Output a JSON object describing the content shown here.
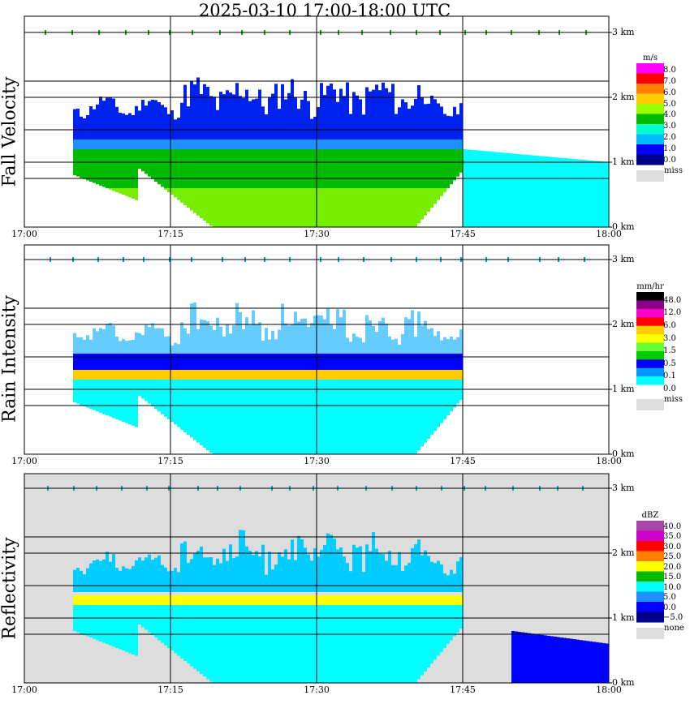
{
  "title": "2025-03-10   17:00-18:00 UTC",
  "chart_data": [
    {
      "type": "heatmap",
      "title": "Fall Velocity",
      "x_ticks": [
        "17:00",
        "17:15",
        "17:30",
        "17:45",
        "18:00"
      ],
      "y_ticks": [
        "0 km",
        "1 km",
        "2 km",
        "3 km"
      ],
      "legend": {
        "unit": "m/s",
        "labels": [
          "8.0",
          "7.0",
          "6.0",
          "5.0",
          "4.0",
          "3.0",
          "2.0",
          "1.0",
          "0.0"
        ],
        "colors": [
          "#ff00ff",
          "#ff0000",
          "#ff7f00",
          "#ffcc00",
          "#99ff00",
          "#00bb00",
          "#00ffcc",
          "#00bbff",
          "#0000ff",
          "#000088"
        ],
        "missing_label": "miss",
        "missing_color": "#dddddd"
      },
      "background": "#ffffff",
      "data": {
        "echo_top_km": 1.9,
        "melting_layer_km": 1.35,
        "rain_start": "17:05",
        "rain_end": "17:45",
        "echo_end": "17:59",
        "layers": [
          {
            "range_km": [
              1.35,
              2.0
            ],
            "value": 0.5,
            "color": "#0022ee"
          },
          {
            "range_km": [
              1.2,
              1.35
            ],
            "value": 1.5,
            "color": "#1e90ff"
          },
          {
            "range_km": [
              0.0,
              1.2
            ],
            "value": 3.5,
            "color": "#00bb00"
          },
          {
            "range_km": [
              0.0,
              0.6
            ],
            "value": 4.5,
            "color": "#77ee00"
          },
          {
            "range_km": [
              0.0,
              1.2
            ],
            "value": 2.5,
            "color": "#00ffff",
            "after": "17:45"
          }
        ]
      }
    },
    {
      "type": "heatmap",
      "title": "Rain Intensity",
      "x_ticks": [
        "17:00",
        "17:15",
        "17:30",
        "17:45",
        "18:00"
      ],
      "y_ticks": [
        "0 km",
        "1 km",
        "2 km",
        "3 km"
      ],
      "legend": {
        "unit": "mm/hr",
        "labels": [
          "48.0",
          "12.0",
          "6.0",
          "3.0",
          "1.5",
          "0.5",
          "0.1",
          "0.0"
        ],
        "colors": [
          "#000000",
          "#880088",
          "#ff00cc",
          "#ff0000",
          "#ffcc00",
          "#ffff00",
          "#66ff33",
          "#00cc00",
          "#0000ff",
          "#0099ff",
          "#00ffff",
          "#ffffff"
        ],
        "missing_label": "miss",
        "missing_color": "#dddddd"
      },
      "background": "#ffffff",
      "data": {
        "echo_top_km": 1.9,
        "bright_band_km": 1.2,
        "layers": [
          {
            "range_km": [
              1.4,
              2.0
            ],
            "value": 0.3,
            "color": "#66ccff"
          },
          {
            "range_km": [
              1.25,
              1.55
            ],
            "value": 0.5,
            "color": "#0000ff"
          },
          {
            "range_km": [
              1.15,
              1.3
            ],
            "value": 3.0,
            "color": "#ffcc00"
          },
          {
            "range_km": [
              0.0,
              1.15
            ],
            "value": 0.3,
            "color": "#1e90ff"
          },
          {
            "range_km": [
              0.0,
              1.15
            ],
            "value": 0.1,
            "color": "#00ffff"
          }
        ]
      }
    },
    {
      "type": "heatmap",
      "title": "Reflectivity",
      "x_ticks": [
        "17:00",
        "17:15",
        "17:30",
        "17:45",
        "18:00"
      ],
      "y_ticks": [
        "0 km",
        "1 km",
        "2 km",
        "3 km"
      ],
      "legend": {
        "unit": "dBZ",
        "labels": [
          "40.0",
          "35.0",
          "30.0",
          "25.0",
          "20.0",
          "15.0",
          "10.0",
          "5.0",
          "0.0",
          "−5.0"
        ],
        "colors": [
          "#aa44aa",
          "#cc00cc",
          "#ff0000",
          "#ff7f00",
          "#ffff00",
          "#00bb00",
          "#00ffff",
          "#1e90ff",
          "#0000ff",
          "#000088"
        ],
        "missing_label": "none",
        "missing_color": "#dddddd"
      },
      "background": "#dddddd",
      "data": {
        "echo_top_km": 1.9,
        "bright_band_km": 1.2,
        "layers": [
          {
            "range_km": [
              1.4,
              2.0
            ],
            "value": 7,
            "color": "#00ccff"
          },
          {
            "range_km": [
              1.2,
              1.35
            ],
            "value": 20,
            "color": "#ffff00"
          },
          {
            "range_km": [
              0.0,
              1.2
            ],
            "value": 15,
            "color": "#00bb00"
          },
          {
            "range_km": [
              0.0,
              1.2
            ],
            "value": 8,
            "color": "#00ffff"
          },
          {
            "range_km": [
              0.0,
              0.8
            ],
            "value": 0,
            "color": "#0000ff",
            "after": "17:50"
          }
        ]
      }
    }
  ]
}
